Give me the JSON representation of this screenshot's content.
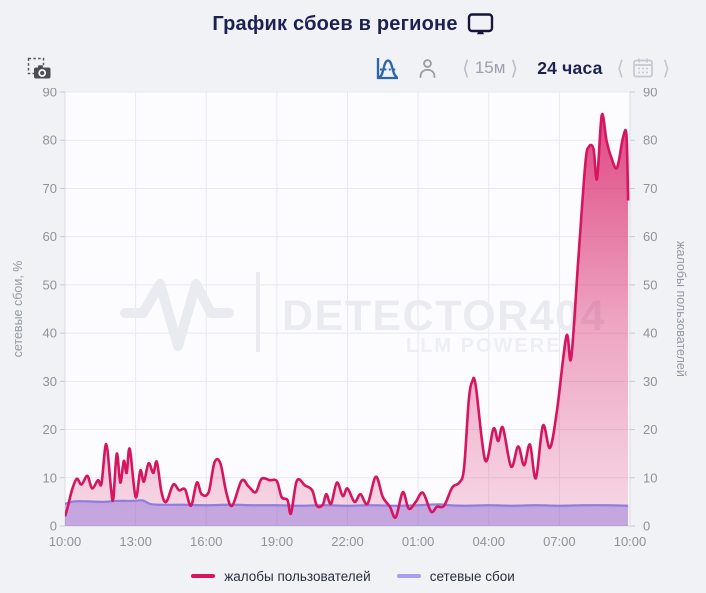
{
  "header": {
    "title": "График сбоев в регионе"
  },
  "toolbar": {
    "interval": {
      "prev": "⟨",
      "label": "15м",
      "next": "⟩"
    },
    "period_label": "24 часа",
    "date_nav": {
      "prev": "⟨",
      "next": "⟩"
    }
  },
  "chart_data": {
    "type": "area",
    "x_axis": {
      "labels": [
        "10:00",
        "13:00",
        "16:00",
        "19:00",
        "22:00",
        "01:00",
        "04:00",
        "07:00",
        "10:00"
      ],
      "hours_span": 24
    },
    "y_left": {
      "title": "сетевые сбои, %",
      "min": 0,
      "max": 90,
      "step": 10
    },
    "y_right": {
      "title": "жалобы пользователей",
      "min": 0,
      "max": 90,
      "step": 10
    },
    "grid": true,
    "legend_position": "bottom",
    "watermark": {
      "brand": "DETECTOR404",
      "tagline": "LLM POWERED"
    },
    "series": [
      {
        "name": "жалобы пользователей",
        "color": "#d6145f",
        "fill_top": "rgba(214,20,95,0.78)",
        "fill_mid": "rgba(214,20,95,0.38)",
        "fill_bottom": "rgba(214,20,95,0.15)",
        "points": [
          [
            0,
            2
          ],
          [
            0.12,
            4
          ],
          [
            0.3,
            7.5
          ],
          [
            0.5,
            9.8
          ],
          [
            0.7,
            8.6
          ],
          [
            0.95,
            10.4
          ],
          [
            1.15,
            7.8
          ],
          [
            1.4,
            9.5
          ],
          [
            1.55,
            8.8
          ],
          [
            1.75,
            17
          ],
          [
            1.95,
            8
          ],
          [
            2.05,
            5.6
          ],
          [
            2.2,
            15
          ],
          [
            2.35,
            9
          ],
          [
            2.5,
            13.5
          ],
          [
            2.62,
            11
          ],
          [
            2.75,
            16
          ],
          [
            3.0,
            6
          ],
          [
            3.2,
            11.5
          ],
          [
            3.35,
            9.2
          ],
          [
            3.55,
            13
          ],
          [
            3.75,
            11
          ],
          [
            3.9,
            13.3
          ],
          [
            4.1,
            7
          ],
          [
            4.3,
            5
          ],
          [
            4.6,
            8.6
          ],
          [
            4.85,
            7.4
          ],
          [
            5.1,
            7.6
          ],
          [
            5.35,
            4.2
          ],
          [
            5.6,
            9
          ],
          [
            5.8,
            6.6
          ],
          [
            6.1,
            7
          ],
          [
            6.35,
            13.2
          ],
          [
            6.6,
            13
          ],
          [
            6.85,
            7
          ],
          [
            7.1,
            4.2
          ],
          [
            7.5,
            9.4
          ],
          [
            7.8,
            8.2
          ],
          [
            8.1,
            7
          ],
          [
            8.35,
            9.8
          ],
          [
            8.7,
            9.5
          ],
          [
            9.0,
            9.3
          ],
          [
            9.2,
            6
          ],
          [
            9.45,
            5.4
          ],
          [
            9.6,
            2.6
          ],
          [
            9.85,
            9.4
          ],
          [
            10.2,
            8.4
          ],
          [
            10.5,
            7.4
          ],
          [
            10.7,
            4.2
          ],
          [
            10.95,
            4.4
          ],
          [
            11.1,
            6.6
          ],
          [
            11.3,
            4.6
          ],
          [
            11.55,
            9
          ],
          [
            11.8,
            6.2
          ],
          [
            12.0,
            7.8
          ],
          [
            12.3,
            5
          ],
          [
            12.55,
            6.6
          ],
          [
            12.85,
            4.6
          ],
          [
            13.2,
            10.2
          ],
          [
            13.5,
            6
          ],
          [
            13.8,
            4
          ],
          [
            14.05,
            1.8
          ],
          [
            14.35,
            7
          ],
          [
            14.6,
            3.6
          ],
          [
            14.9,
            5
          ],
          [
            15.2,
            6.9
          ],
          [
            15.55,
            3
          ],
          [
            15.8,
            4
          ],
          [
            16.1,
            4.2
          ],
          [
            16.45,
            8
          ],
          [
            16.75,
            9
          ],
          [
            16.95,
            12
          ],
          [
            17.15,
            26
          ],
          [
            17.3,
            30
          ],
          [
            17.45,
            29
          ],
          [
            17.85,
            13.6
          ],
          [
            18.2,
            20.2
          ],
          [
            18.4,
            17.6
          ],
          [
            18.6,
            20.4
          ],
          [
            18.95,
            12.3
          ],
          [
            19.25,
            16.5
          ],
          [
            19.5,
            12.6
          ],
          [
            19.75,
            16.9
          ],
          [
            20.0,
            9.9
          ],
          [
            20.3,
            20.8
          ],
          [
            20.6,
            16.2
          ],
          [
            20.9,
            24
          ],
          [
            21.3,
            39.4
          ],
          [
            21.5,
            34.8
          ],
          [
            21.8,
            55
          ],
          [
            22.1,
            75
          ],
          [
            22.25,
            78.6
          ],
          [
            22.45,
            78.2
          ],
          [
            22.6,
            72
          ],
          [
            22.8,
            85.2
          ],
          [
            23.0,
            80
          ],
          [
            23.2,
            76.5
          ],
          [
            23.45,
            74.3
          ],
          [
            23.7,
            80.5
          ],
          [
            23.85,
            81
          ],
          [
            23.92,
            67.5
          ]
        ]
      },
      {
        "name": "сетевые сбои",
        "color": "#8f7de0",
        "fill": "rgba(129,100,216,0.42)",
        "points": [
          [
            0,
            4.6
          ],
          [
            0.4,
            5.1
          ],
          [
            1,
            5.1
          ],
          [
            1.6,
            5.0
          ],
          [
            2.2,
            5.2
          ],
          [
            2.8,
            5.2
          ],
          [
            3.3,
            5.3
          ],
          [
            3.6,
            4.6
          ],
          [
            4,
            4.4
          ],
          [
            5,
            4.4
          ],
          [
            6,
            4.3
          ],
          [
            7,
            4.4
          ],
          [
            8,
            4.3
          ],
          [
            9,
            4.3
          ],
          [
            10,
            4.2
          ],
          [
            11,
            4.3
          ],
          [
            12,
            4.2
          ],
          [
            13,
            4.3
          ],
          [
            14,
            4.2
          ],
          [
            15,
            4.3
          ],
          [
            15.9,
            4.5
          ],
          [
            16.3,
            4.3
          ],
          [
            17,
            4.2
          ],
          [
            18,
            4.3
          ],
          [
            19,
            4.2
          ],
          [
            20,
            4.3
          ],
          [
            21,
            4.2
          ],
          [
            22,
            4.3
          ],
          [
            23,
            4.3
          ],
          [
            23.92,
            4.2
          ]
        ]
      }
    ]
  },
  "legend": {
    "items": [
      {
        "label": "жалобы пользователей",
        "color": "#d6145f"
      },
      {
        "label": "сетевые сбои",
        "color": "#a79df2"
      }
    ]
  },
  "colors": {
    "page_bg": "#f1f2f6",
    "plot_bg": "#fcfcfe",
    "grid": "#e7e9ee",
    "axis_frame": "#d9dce3",
    "tick_text": "#8d929c",
    "navy": "#1b2150",
    "watermark": "#e9ebf0"
  }
}
